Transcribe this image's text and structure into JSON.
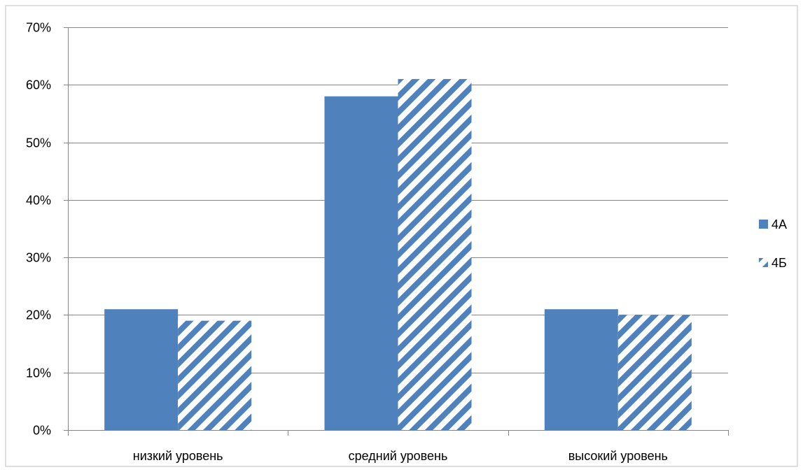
{
  "chart_data": {
    "type": "bar",
    "title": "",
    "xlabel": "",
    "ylabel": "",
    "categories": [
      "низкий уровень",
      "средний уровень",
      "высокий уровень"
    ],
    "series": [
      {
        "name": "4А",
        "values": [
          0.21,
          0.58,
          0.21
        ],
        "color": "#4f81bd",
        "fill": "solid"
      },
      {
        "name": "4Б",
        "values": [
          0.19,
          0.61,
          0.2
        ],
        "color": "#4f81bd",
        "fill": "diagonal-stripes"
      }
    ],
    "ylim": [
      0,
      0.7
    ],
    "yticks": [
      0,
      0.1,
      0.2,
      0.3,
      0.4,
      0.5,
      0.6,
      0.7
    ],
    "ytick_labels": [
      "0%",
      "10%",
      "20%",
      "30%",
      "40%",
      "50%",
      "60%",
      "70%"
    ],
    "grid": true,
    "legend_position": "right"
  }
}
